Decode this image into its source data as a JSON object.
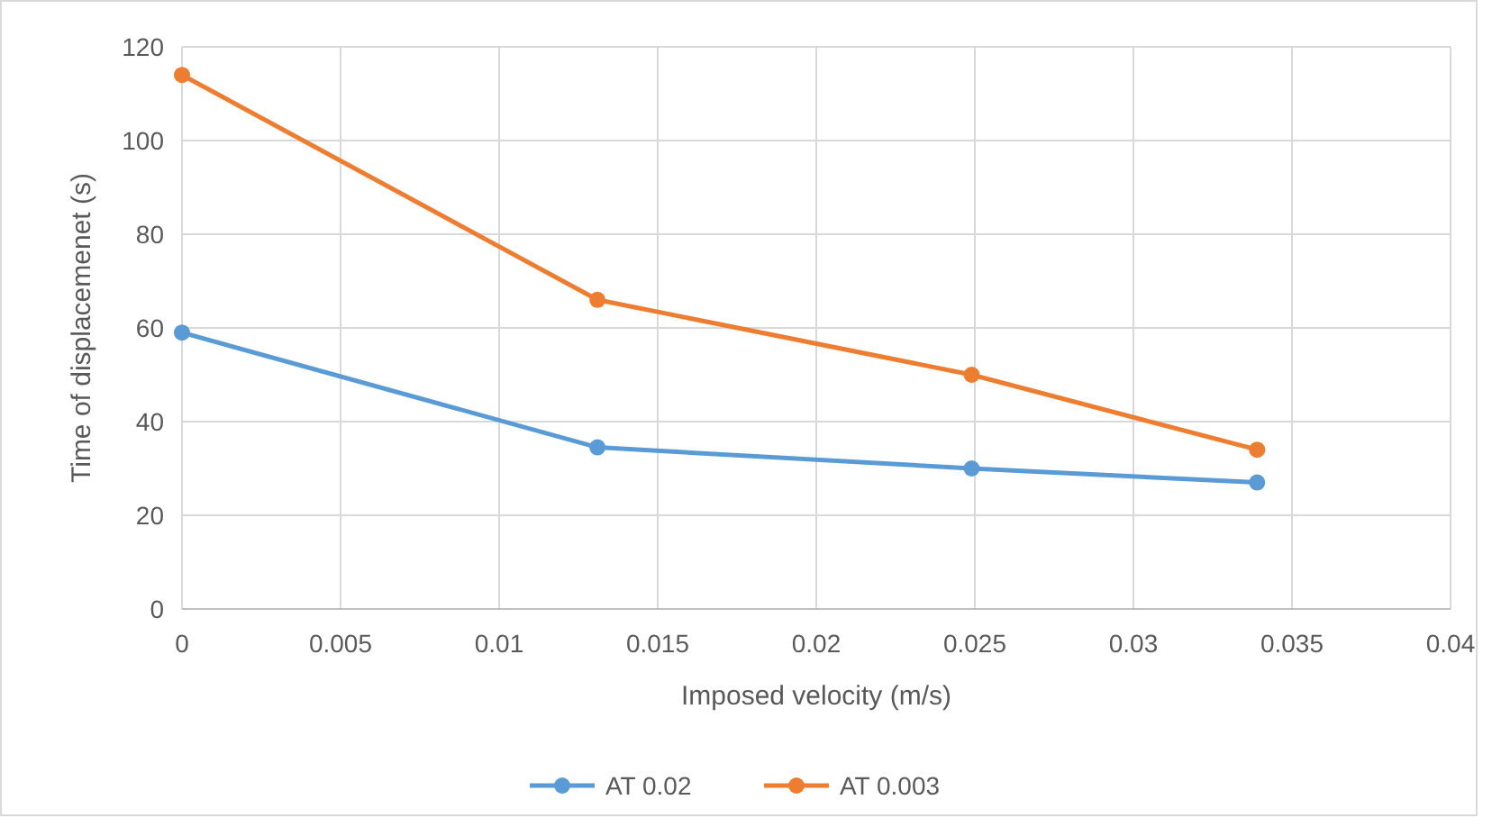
{
  "chart_data": {
    "type": "line",
    "xlabel": "Imposed velocity (m/s)",
    "ylabel": "Time of displacemenet (s)",
    "x": [
      0,
      0.0131,
      0.0249,
      0.0339
    ],
    "series": [
      {
        "name": "AT 0.02",
        "color": "#5b9bd5",
        "values": [
          59,
          34.5,
          30,
          27
        ]
      },
      {
        "name": "AT 0.003",
        "color": "#ed7d31",
        "values": [
          114,
          66,
          50,
          34
        ]
      }
    ],
    "xlim": [
      0,
      0.04
    ],
    "xticks": [
      0,
      0.005,
      0.01,
      0.015,
      0.02,
      0.025,
      0.03,
      0.035,
      0.04
    ],
    "ylim": [
      0,
      120
    ],
    "yticks": [
      0,
      20,
      40,
      60,
      80,
      100,
      120
    ],
    "grid": true,
    "legend": "bottom",
    "marker": "circle",
    "line_style": "solid"
  }
}
